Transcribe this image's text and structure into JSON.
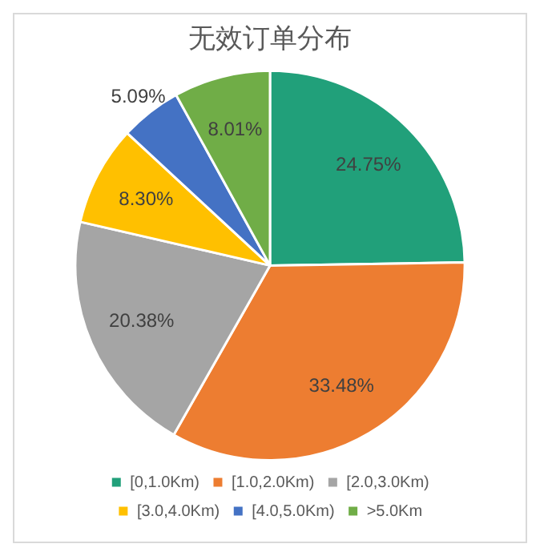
{
  "chart_data": {
    "type": "pie",
    "title": "无效订单分布",
    "categories": [
      "[0,1.0Km)",
      "[1.0,2.0Km)",
      "[2.0,3.0Km)",
      "[3.0,4.0Km)",
      "[4.0,5.0Km)",
      ">5.0Km"
    ],
    "values": [
      24.75,
      33.48,
      20.38,
      8.3,
      5.09,
      8.01
    ],
    "colors": [
      "#21a07a",
      "#ed7d31",
      "#a5a5a5",
      "#ffc000",
      "#4472c4",
      "#70ad47"
    ],
    "value_labels": [
      "24.75%",
      "33.48%",
      "20.38%",
      "8.30%",
      "5.09%",
      "8.01%"
    ],
    "legend": "bottom"
  }
}
